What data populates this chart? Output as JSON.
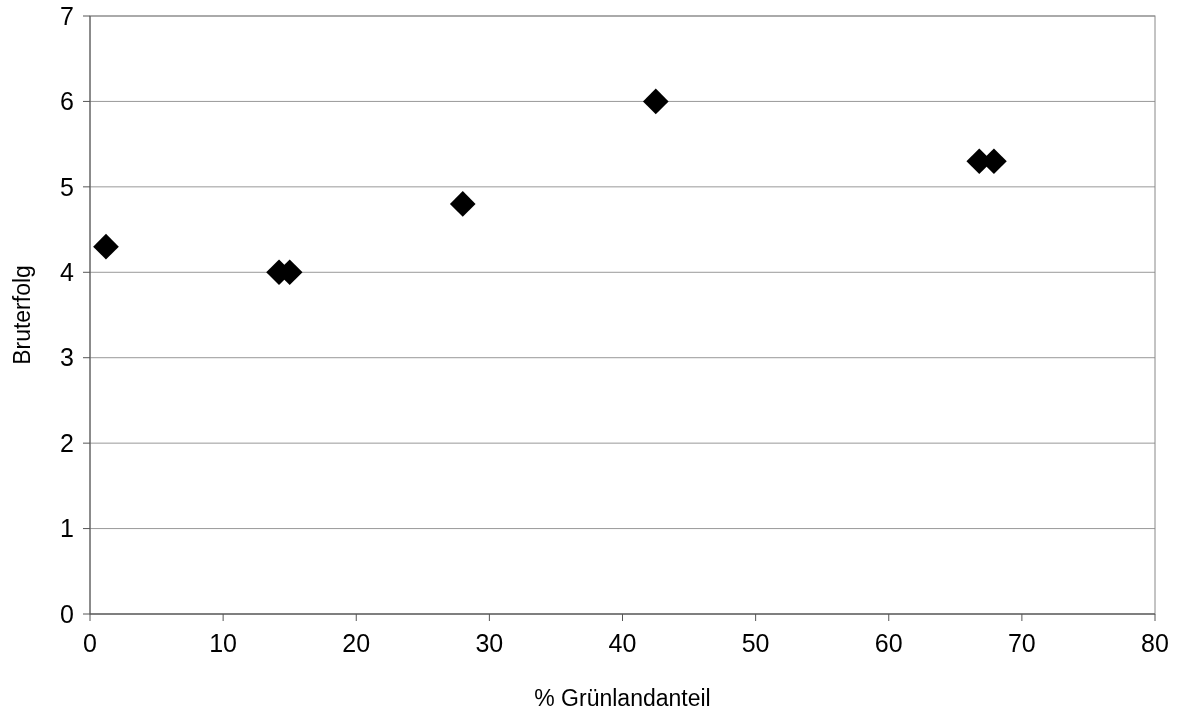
{
  "chart_data": {
    "type": "scatter",
    "xlabel": "% Grünlandanteil",
    "ylabel": "Bruterfolg",
    "x": [
      1.2,
      14.2,
      15.0,
      28.0,
      42.5,
      66.8,
      67.9
    ],
    "values": [
      4.3,
      4.0,
      4.0,
      4.8,
      6.0,
      5.3,
      5.3
    ],
    "color": "#000000",
    "marker": "diamond",
    "grid": "y",
    "xlim": [
      0,
      80
    ],
    "xticks": [
      0,
      10,
      20,
      30,
      40,
      50,
      60,
      70,
      80
    ],
    "ylim": [
      0,
      7
    ],
    "yticks": [
      0,
      1,
      2,
      3,
      4,
      5,
      6,
      7
    ]
  }
}
